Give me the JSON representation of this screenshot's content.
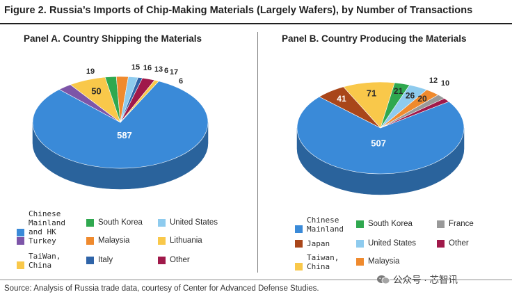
{
  "figure": {
    "title": "Figure 2. Russia’s Imports of Chip-Making Materials (Largely Wafers), by Number of Transactions",
    "source": "Source: Analysis of Russia trade data, courtesy of Center for Advanced Defense Studies.",
    "watermark": "公众号 · 芯智讯"
  },
  "colors": {
    "Chinese Mainland and HK": "#3a8ad8",
    "Chinese Mainland": "#3a8ad8",
    "South Korea": "#2fa84f",
    "United States": "#8ecbee",
    "Turkey": "#7d55a8",
    "Malaysia": "#ef8a2e",
    "Lithuania": "#f9c84a",
    "TaiWan, China": "#f9c84a",
    "Taiwan, China": "#f9c84a",
    "Italy": "#2f64a8",
    "Other": "#a0194a",
    "Japan": "#a9461a",
    "France": "#999999"
  },
  "chart_data": [
    {
      "type": "pie",
      "title": "Panel A. Country Shipping the Materials",
      "slices": [
        {
          "label": "Chinese Mainland and HK",
          "value": 587
        },
        {
          "label": "Turkey",
          "value": 19
        },
        {
          "label": "TaiWan, China",
          "value": 50
        },
        {
          "label": "South Korea",
          "value": 15
        },
        {
          "label": "Malaysia",
          "value": 16
        },
        {
          "label": "United States",
          "value": 13
        },
        {
          "label": "Italy",
          "value": 6
        },
        {
          "label": "Other",
          "value": 17
        },
        {
          "label": "Lithuania",
          "value": 6
        }
      ],
      "legend": [
        {
          "label": "Chinese\nMainland\nand HK",
          "key": "Chinese Mainland and HK",
          "mono": true
        },
        {
          "label": "South Korea",
          "key": "South Korea"
        },
        {
          "label": "United States",
          "key": "United States"
        },
        {
          "label": "Turkey",
          "key": "Turkey",
          "mono": true
        },
        {
          "label": "Malaysia",
          "key": "Malaysia"
        },
        {
          "label": "Lithuania",
          "key": "Lithuania"
        },
        {
          "label": "TaiWan,\nChina",
          "key": "TaiWan, China",
          "mono": true
        },
        {
          "label": "Italy",
          "key": "Italy"
        },
        {
          "label": "Other",
          "key": "Other"
        }
      ]
    },
    {
      "type": "pie",
      "title": "Panel B. Country Producing the Materials",
      "slices": [
        {
          "label": "Chinese Mainland",
          "value": 507
        },
        {
          "label": "Japan",
          "value": 41
        },
        {
          "label": "Taiwan, China",
          "value": 71
        },
        {
          "label": "South Korea",
          "value": 21
        },
        {
          "label": "United States",
          "value": 26
        },
        {
          "label": "Malaysia",
          "value": 20
        },
        {
          "label": "France",
          "value": 12
        },
        {
          "label": "Other",
          "value": 10
        }
      ],
      "legend": [
        {
          "label": "Chinese\nMainland",
          "key": "Chinese Mainland",
          "mono": true
        },
        {
          "label": "South Korea",
          "key": "South Korea"
        },
        {
          "label": "France",
          "key": "France"
        },
        {
          "label": "Japan",
          "key": "Japan",
          "mono": true
        },
        {
          "label": "United States",
          "key": "United States"
        },
        {
          "label": "Other",
          "key": "Other"
        },
        {
          "label": "Taiwan,\nChina",
          "key": "Taiwan, China",
          "mono": true
        },
        {
          "label": "Malaysia",
          "key": "Malaysia"
        }
      ]
    }
  ]
}
